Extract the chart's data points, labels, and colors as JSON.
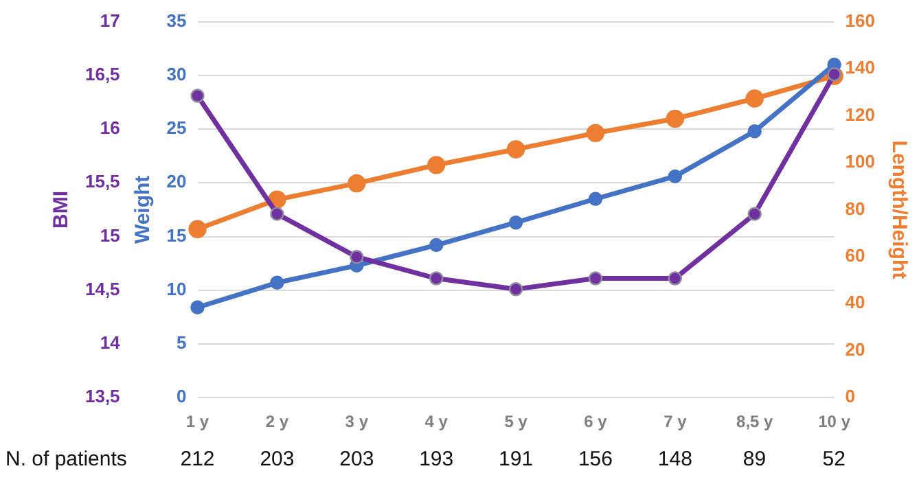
{
  "chart_data": {
    "type": "line",
    "categories": [
      "1 y",
      "2 y",
      "3 y",
      "4 y",
      "5 y",
      "6 y",
      "7 y",
      "8,5 y",
      "10 y"
    ],
    "series": [
      {
        "color": "#7030a0",
        "axis": "y3",
        "values": [
          16.31,
          15.21,
          14.81,
          14.61,
          14.51,
          14.61,
          14.61,
          15.21,
          16.51
        ]
      },
      {
        "color": "#4472c4",
        "axis": "y",
        "values": [
          8.4,
          10.7,
          12.3,
          14.2,
          16.3,
          18.5,
          20.6,
          24.8,
          31.0
        ]
      },
      {
        "color": "#ed7d31",
        "axis": "y2",
        "values": [
          71.7,
          84.3,
          91.2,
          99,
          105.7,
          112.6,
          118.7,
          127.3,
          136.9
        ]
      }
    ],
    "ylabel": "Weight",
    "y2label": "Length/Height",
    "y3label": "BMI",
    "ylim": [
      0,
      35
    ],
    "yticks": [
      0,
      5,
      10,
      15,
      20,
      25,
      30,
      35
    ],
    "y2lim": [
      0,
      160
    ],
    "y2ticks": [
      0,
      20,
      40,
      60,
      80,
      100,
      120,
      140,
      160
    ],
    "y3lim": [
      13.5,
      17
    ],
    "y3ticks": [
      {
        "value": 13.5,
        "label": "13,5"
      },
      14,
      {
        "value": 14.5,
        "label": "14,5"
      },
      15,
      {
        "value": 15.5,
        "label": "15,5"
      },
      16,
      {
        "value": 16.5,
        "label": "16,5"
      },
      17
    ],
    "grid": "y",
    "legend": false,
    "marker": "circle",
    "annotations": [
      "N. of patients",
      "212",
      "203",
      "203",
      "193",
      "191",
      "156",
      "148",
      "89",
      "52"
    ]
  }
}
